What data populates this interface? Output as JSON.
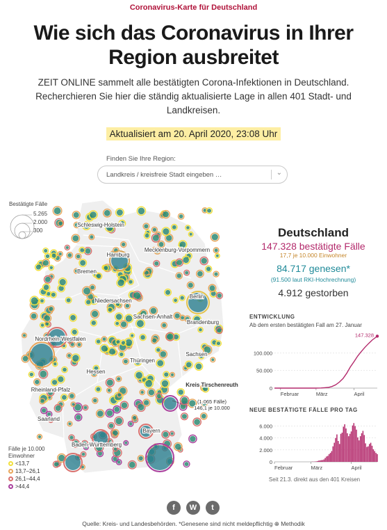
{
  "kicker": "Coronavirus-Karte für Deutschland",
  "headline": "Wie sich das Coronavirus in Ihrer Region ausbreitet",
  "intro": "ZEIT ONLINE sammelt alle bestätigten Corona-Infektionen in Deutschland. Recherchieren Sie hier die ständig aktualisierte Lage in allen 401 Stadt- und Landkreisen.",
  "updated": "Aktualisiert am 20. April 2020, 23:08 Uhr",
  "search": {
    "label": "Finden Sie Ihre Region:",
    "placeholder": "Landkreis / kreisfreie Stadt eingeben …",
    "chevron_icon": "chevron-down-icon"
  },
  "map": {
    "size_legend": {
      "title": "Bestätigte Fälle",
      "values": [
        "5.265",
        "2.000",
        "300"
      ]
    },
    "state_labels": [
      "Schleswig-Holstein",
      "Hamburg",
      "Mecklenburg-Vorpommern",
      "Bremen",
      "Niedersachsen",
      "Berlin",
      "Sachsen-Anhalt",
      "Brandenburg",
      "Nordrhein-Westfalen",
      "Thüringen",
      "Sachsen",
      "Hessen",
      "Rheinland-Pfalz",
      "Saarland",
      "Bayern",
      "Baden-Württemberg"
    ],
    "callout": {
      "title": "Kreis Tirschenreuth",
      "cases": "(1.065 Fälle)",
      "rate": "146,1 je 10.000"
    },
    "rate_legend": {
      "title": "Fälle je 10.000 Einwohner",
      "items": [
        {
          "label": "<13,7",
          "color": "#f2e03a"
        },
        {
          "label": "13,7–26,1",
          "color": "#e9a65a"
        },
        {
          "label": "26,1–44,4",
          "color": "#d9716e"
        },
        {
          "label": ">44,4",
          "color": "#a93f9c"
        }
      ]
    }
  },
  "stats": {
    "title": "Deutschland",
    "cases": "147.328 bestätigte Fälle",
    "per10k": "17,7  je 10.000 Einwohner",
    "recovered": "84.717 genesen*",
    "rki": "(91.500  laut RKI-Hochrechnung)",
    "deaths": "4.912 gestorben",
    "colors": {
      "cases": "#b3296b",
      "recovered": "#1f8a99"
    }
  },
  "chart_data": [
    {
      "type": "line",
      "title": "ENTWICKLUNG",
      "subtitle": "Ab dem ersten bestätigten Fall am 27. Januar",
      "x_tick_labels": [
        "Februar",
        "März",
        "April"
      ],
      "y_tick_labels": [
        "100.000",
        "50.000",
        "0"
      ],
      "ylim": [
        0,
        150000
      ],
      "annotation": "147.328",
      "x": [
        "01-27",
        "02-01",
        "02-15",
        "02-29",
        "03-05",
        "03-08",
        "03-11",
        "03-14",
        "03-17",
        "03-20",
        "03-23",
        "03-26",
        "03-29",
        "04-01",
        "04-04",
        "04-07",
        "04-10",
        "04-13",
        "04-16",
        "04-20"
      ],
      "values": [
        1,
        10,
        16,
        66,
        350,
        1100,
        2000,
        4600,
        9200,
        17000,
        27000,
        42000,
        60000,
        75000,
        91000,
        104000,
        116000,
        127000,
        137000,
        147328
      ],
      "color": "#b3296b"
    },
    {
      "type": "bar",
      "title": "NEUE BESTÄTIGTE FÄLLE PRO TAG",
      "x_tick_labels": [
        "Februar",
        "März",
        "April"
      ],
      "y_tick_labels": [
        "6.000",
        "4.000",
        "2.000",
        "0"
      ],
      "ylim": [
        0,
        7000
      ],
      "x_start": "03-01",
      "values": [
        40,
        30,
        50,
        70,
        130,
        200,
        240,
        280,
        300,
        400,
        650,
        900,
        1000,
        1300,
        1500,
        1800,
        2600,
        3200,
        4000,
        4600,
        3500,
        3000,
        4700,
        4900,
        5900,
        6300,
        5600,
        4800,
        4300,
        4700,
        5100,
        6100,
        6500,
        6000,
        5400,
        4100,
        3600,
        4300,
        4800,
        5200,
        4500,
        3100,
        2500,
        2600,
        3000,
        3200,
        2700,
        2100,
        1800,
        1500,
        1300
      ],
      "color": "#b3296b",
      "footnote": "Seit 21.3. direkt aus den 401 Kreisen"
    }
  ],
  "share": {
    "facebook_label": "f",
    "whatsapp_label": "W",
    "twitter_label": "t"
  },
  "source": "Quelle: Kreis- und Landesbehörden. *Genesene sind nicht meldepflichtig ⊕ Methodik"
}
